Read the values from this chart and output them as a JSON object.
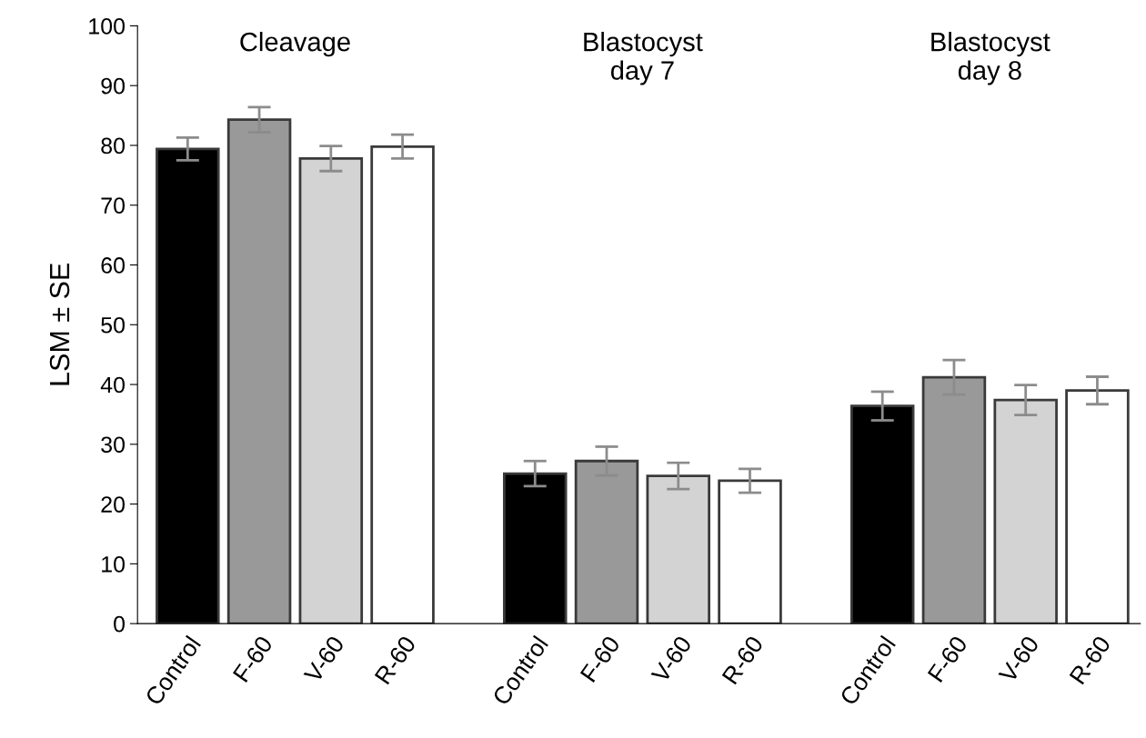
{
  "chart_data": {
    "type": "bar",
    "ylabel": "LSM ± SE",
    "categories": [
      "Control",
      "F-60",
      "V-60",
      "R-60",
      "Control",
      "F-60",
      "V-60",
      "R-60",
      "Control",
      "F-60",
      "V-60",
      "R-60"
    ],
    "values": [
      79.4,
      84.3,
      77.8,
      79.8,
      25.1,
      27.2,
      24.7,
      23.9,
      36.4,
      41.2,
      37.4,
      39.0
    ],
    "errors": [
      1.9,
      2.1,
      2.1,
      2.0,
      2.1,
      2.4,
      2.2,
      2.0,
      2.4,
      2.9,
      2.5,
      2.3
    ],
    "colors": [
      "#000000",
      "#999999",
      "#d3d3d3",
      "#ffffff",
      "#000000",
      "#999999",
      "#d3d3d3",
      "#ffffff",
      "#000000",
      "#999999",
      "#d3d3d3",
      "#ffffff"
    ],
    "annotations": [
      "Cleavage",
      "Blastocyst\nday 7",
      "Blastocyst\nday 8"
    ],
    "ylim": [
      0,
      100
    ],
    "yticks": [
      0,
      10,
      20,
      30,
      40,
      50,
      60,
      70,
      80,
      90,
      100
    ],
    "grid": false,
    "legend": false
  }
}
